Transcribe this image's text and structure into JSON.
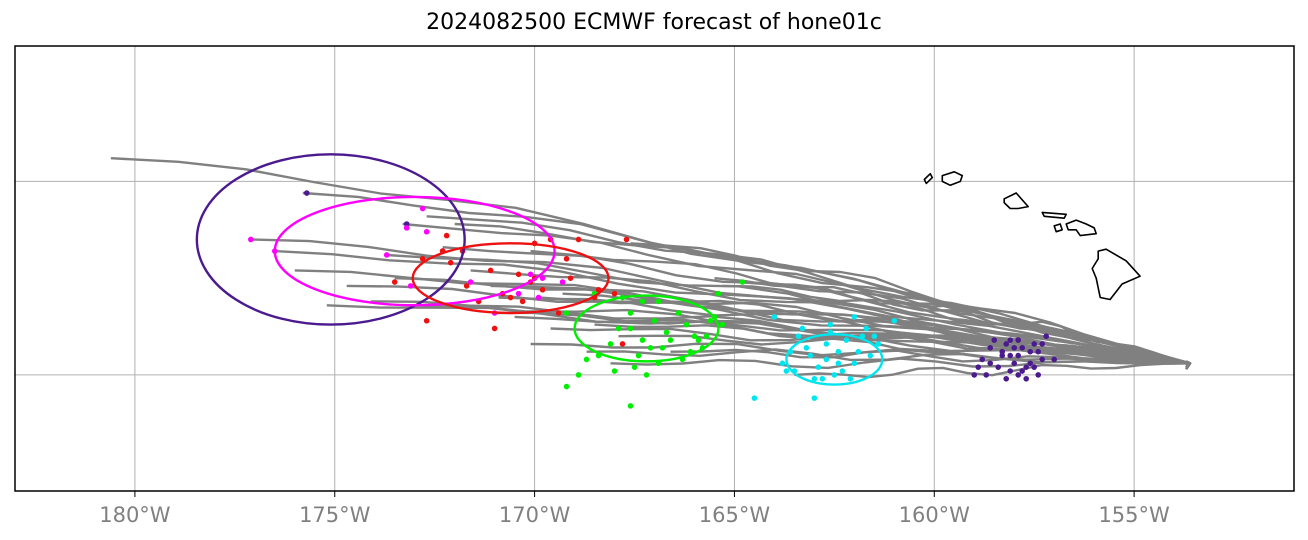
{
  "title": "2024082500 ECMWF forecast of hone01c",
  "map": {
    "lon_range": [
      -183,
      -151
    ],
    "lat_range": [
      14,
      25.5
    ],
    "gridlines_lon": [
      -180,
      -175,
      -170,
      -165,
      -160,
      -155
    ],
    "gridlines_lat": [
      17,
      22
    ],
    "lon_tick_labels": [
      "180°W",
      "175°W",
      "170°W",
      "165°W",
      "160°W",
      "155°W"
    ],
    "tick_label_color": "#808080",
    "grid_color": "#b0b0b0"
  },
  "ensemble_tracks": {
    "color": "#808080",
    "end_point": [
      -153.6,
      17.3
    ],
    "start_points": [
      [
        -180.6,
        22.6
      ],
      [
        -175.8,
        21.7
      ],
      [
        -173.3,
        20.9
      ],
      [
        -172.7,
        21.1
      ],
      [
        -177.1,
        20.5
      ],
      [
        -176.5,
        20.2
      ],
      [
        -172.3,
        20.3
      ],
      [
        -171.1,
        19.3
      ],
      [
        -172.0,
        20.9
      ],
      [
        -170.1,
        20.2
      ],
      [
        -173.7,
        20.1
      ],
      [
        -174.7,
        19.3
      ],
      [
        -173.5,
        19.5
      ],
      [
        -171.6,
        19.7
      ],
      [
        -170.9,
        19.0
      ],
      [
        -171.0,
        18.6
      ],
      [
        -169.3,
        19.1
      ],
      [
        -168.5,
        18.3
      ],
      [
        -167.6,
        20.4
      ],
      [
        -174.1,
        18.9
      ],
      [
        -170.5,
        18.5
      ],
      [
        -169.6,
        18.2
      ],
      [
        -167.9,
        18.0
      ],
      [
        -168.7,
        17.6
      ],
      [
        -161.0,
        18.9
      ],
      [
        -164.9,
        19.4
      ],
      [
        -165.3,
        19.3
      ],
      [
        -170.1,
        17.8
      ],
      [
        -168.1,
        17.3
      ],
      [
        -166.6,
        17.6
      ],
      [
        -163.5,
        17.0
      ],
      [
        -165.5,
        19.5
      ],
      [
        -175.2,
        18.8
      ],
      [
        -172.8,
        18.8
      ],
      [
        -176.0,
        19.7
      ],
      [
        -169.9,
        19.0
      ]
    ]
  },
  "positions": [
    {
      "name": "position-group-1",
      "color": "#4b1a8f",
      "ellipse": {
        "center": [
          -175.1,
          20.5
        ],
        "rx_deg": 6.7,
        "ry_deg": 4.4
      },
      "points": [
        [
          -175.7,
          21.7
        ],
        [
          -173.2,
          20.9
        ],
        [
          -158.1,
          17.9
        ],
        [
          -157.6,
          17.6
        ],
        [
          -158.3,
          17.5
        ],
        [
          -157.8,
          17.7
        ],
        [
          -158.0,
          17.3
        ],
        [
          -157.5,
          17.8
        ],
        [
          -158.4,
          17.2
        ],
        [
          -157.9,
          17.0
        ],
        [
          -158.6,
          17.7
        ],
        [
          -157.3,
          17.4
        ],
        [
          -158.1,
          17.5
        ],
        [
          -157.7,
          17.2
        ],
        [
          -158.8,
          17.4
        ],
        [
          -157.0,
          17.4
        ],
        [
          -158.2,
          16.9
        ],
        [
          -157.4,
          17.0
        ],
        [
          -158.5,
          17.9
        ],
        [
          -157.7,
          16.9
        ],
        [
          -158.9,
          17.2
        ],
        [
          -157.2,
          18.0
        ],
        [
          -158.3,
          17.6
        ],
        [
          -157.9,
          17.5
        ],
        [
          -157.6,
          17.3
        ],
        [
          -158.7,
          17.0
        ],
        [
          -157.4,
          17.6
        ],
        [
          -158.2,
          17.8
        ],
        [
          -157.8,
          17.1
        ],
        [
          -158.0,
          17.7
        ],
        [
          -159.0,
          17.0
        ],
        [
          -157.5,
          17.2
        ],
        [
          -158.1,
          17.1
        ],
        [
          -157.3,
          17.8
        ],
        [
          -158.6,
          17.3
        ],
        [
          -157.9,
          17.9
        ]
      ]
    },
    {
      "name": "position-group-2",
      "color": "#ff00ff",
      "ellipse": {
        "center": [
          -173.0,
          20.2
        ],
        "rx_deg": 7.0,
        "ry_deg": 2.8
      },
      "points": [
        [
          -172.8,
          21.3
        ],
        [
          -173.7,
          20.1
        ],
        [
          -172.7,
          20.7
        ],
        [
          -173.2,
          20.8
        ],
        [
          -177.1,
          20.5
        ],
        [
          -176.5,
          20.2
        ],
        [
          -172.3,
          20.2
        ],
        [
          -171.0,
          18.6
        ],
        [
          -170.4,
          19.1
        ],
        [
          -169.9,
          19.0
        ],
        [
          -169.3,
          19.4
        ],
        [
          -169.8,
          19.5
        ],
        [
          -173.1,
          19.3
        ],
        [
          -170.1,
          19.6
        ],
        [
          -171.6,
          19.4
        ]
      ]
    },
    {
      "name": "position-group-3",
      "color": "#ee1111",
      "ellipse": {
        "center": [
          -170.6,
          19.5
        ],
        "rx_deg": 4.9,
        "ry_deg": 1.8
      },
      "points": [
        [
          -172.3,
          20.2
        ],
        [
          -172.8,
          20.0
        ],
        [
          -171.1,
          19.7
        ],
        [
          -170.4,
          19.6
        ],
        [
          -170.0,
          19.5
        ],
        [
          -169.1,
          19.5
        ],
        [
          -168.5,
          19.0
        ],
        [
          -169.8,
          19.2
        ],
        [
          -170.8,
          19.1
        ],
        [
          -171.7,
          19.3
        ],
        [
          -172.1,
          19.9
        ],
        [
          -169.6,
          20.5
        ],
        [
          -168.9,
          20.5
        ],
        [
          -167.7,
          20.5
        ],
        [
          -170.1,
          19.4
        ],
        [
          -170.6,
          19.0
        ],
        [
          -171.4,
          18.9
        ],
        [
          -172.7,
          18.4
        ],
        [
          -173.5,
          19.4
        ],
        [
          -169.4,
          18.6
        ],
        [
          -167.8,
          17.8
        ],
        [
          -171.0,
          18.2
        ],
        [
          -170.0,
          20.4
        ],
        [
          -169.2,
          20.0
        ],
        [
          -168.4,
          19.2
        ],
        [
          -170.3,
          18.9
        ],
        [
          -171.8,
          20.2
        ],
        [
          -172.2,
          20.6
        ],
        [
          -168.0,
          19.1
        ]
      ]
    },
    {
      "name": "position-group-4",
      "color": "#00ee00",
      "ellipse": {
        "center": [
          -167.2,
          18.2
        ],
        "rx_deg": 3.6,
        "ry_deg": 1.7
      },
      "points": [
        [
          -164.8,
          19.4
        ],
        [
          -167.3,
          18.9
        ],
        [
          -166.4,
          18.6
        ],
        [
          -167.6,
          18.2
        ],
        [
          -166.8,
          17.7
        ],
        [
          -165.9,
          17.9
        ],
        [
          -168.1,
          17.8
        ],
        [
          -166.2,
          18.3
        ],
        [
          -165.5,
          18.5
        ],
        [
          -167.0,
          18.4
        ],
        [
          -168.4,
          17.5
        ],
        [
          -167.4,
          17.5
        ],
        [
          -166.0,
          18.0
        ],
        [
          -168.7,
          17.4
        ],
        [
          -167.9,
          18.2
        ],
        [
          -165.3,
          18.3
        ],
        [
          -166.7,
          18.1
        ],
        [
          -167.1,
          17.7
        ],
        [
          -168.5,
          19.1
        ],
        [
          -167.8,
          19.0
        ],
        [
          -166.6,
          17.9
        ],
        [
          -165.8,
          17.7
        ],
        [
          -169.2,
          18.6
        ],
        [
          -169.2,
          16.7
        ],
        [
          -167.6,
          16.2
        ],
        [
          -167.2,
          17.0
        ],
        [
          -166.1,
          17.6
        ],
        [
          -165.7,
          18.0
        ],
        [
          -167.5,
          17.2
        ],
        [
          -168.0,
          17.1
        ],
        [
          -168.9,
          17.0
        ],
        [
          -167.6,
          18.6
        ],
        [
          -166.9,
          18.9
        ],
        [
          -165.4,
          19.1
        ],
        [
          -167.3,
          17.9
        ],
        [
          -166.3,
          17.4
        ],
        [
          -166.9,
          17.3
        ],
        [
          -165.6,
          18.4
        ]
      ]
    },
    {
      "name": "position-group-5",
      "color": "#00e5ee",
      "ellipse": {
        "center": [
          -162.5,
          17.4
        ],
        "rx_deg": 2.4,
        "ry_deg": 1.3
      },
      "points": [
        [
          -163.5,
          17.1
        ],
        [
          -162.4,
          17.6
        ],
        [
          -161.0,
          18.4
        ],
        [
          -162.7,
          17.8
        ],
        [
          -163.1,
          17.5
        ],
        [
          -162.2,
          17.9
        ],
        [
          -161.7,
          18.2
        ],
        [
          -162.9,
          17.2
        ],
        [
          -163.4,
          18.0
        ],
        [
          -162.6,
          18.3
        ],
        [
          -161.4,
          17.8
        ],
        [
          -163.8,
          17.3
        ],
        [
          -162.0,
          17.3
        ],
        [
          -162.5,
          17.0
        ],
        [
          -161.9,
          17.6
        ],
        [
          -163.0,
          16.9
        ],
        [
          -162.7,
          17.4
        ],
        [
          -161.6,
          17.5
        ],
        [
          -163.2,
          17.7
        ],
        [
          -162.3,
          17.1
        ],
        [
          -161.8,
          18.0
        ],
        [
          -162.8,
          16.9
        ],
        [
          -164.5,
          16.4
        ],
        [
          -163.0,
          16.4
        ],
        [
          -164.0,
          18.5
        ],
        [
          -162.0,
          18.5
        ],
        [
          -163.7,
          17.1
        ],
        [
          -162.4,
          17.3
        ],
        [
          -162.1,
          16.9
        ],
        [
          -163.3,
          18.2
        ],
        [
          -161.5,
          18.0
        ],
        [
          -162.6,
          18.1
        ],
        [
          -163.6,
          17.6
        ]
      ]
    }
  ],
  "islands": [
    {
      "name": "niihau",
      "points": [
        [
          -160.25,
          22.05
        ],
        [
          -160.1,
          22.2
        ],
        [
          -160.05,
          22.1
        ],
        [
          -160.2,
          21.95
        ]
      ]
    },
    {
      "name": "kauai",
      "points": [
        [
          -159.8,
          22.15
        ],
        [
          -159.5,
          22.25
        ],
        [
          -159.3,
          22.15
        ],
        [
          -159.35,
          22.0
        ],
        [
          -159.6,
          21.9
        ],
        [
          -159.8,
          22.0
        ]
      ]
    },
    {
      "name": "oahu",
      "points": [
        [
          -158.25,
          21.55
        ],
        [
          -157.95,
          21.7
        ],
        [
          -157.65,
          21.35
        ],
        [
          -157.9,
          21.3
        ],
        [
          -158.1,
          21.3
        ],
        [
          -158.25,
          21.45
        ]
      ]
    },
    {
      "name": "molokai",
      "points": [
        [
          -157.3,
          21.2
        ],
        [
          -156.7,
          21.15
        ],
        [
          -156.75,
          21.05
        ],
        [
          -157.25,
          21.1
        ]
      ]
    },
    {
      "name": "lanai",
      "points": [
        [
          -157.0,
          20.85
        ],
        [
          -156.85,
          20.9
        ],
        [
          -156.8,
          20.75
        ],
        [
          -156.95,
          20.7
        ]
      ]
    },
    {
      "name": "maui",
      "points": [
        [
          -156.7,
          20.9
        ],
        [
          -156.45,
          21.0
        ],
        [
          -156.2,
          20.9
        ],
        [
          -156.0,
          20.8
        ],
        [
          -155.95,
          20.65
        ],
        [
          -156.35,
          20.6
        ],
        [
          -156.45,
          20.75
        ],
        [
          -156.65,
          20.75
        ]
      ]
    },
    {
      "name": "hawaii",
      "points": [
        [
          -155.9,
          20.2
        ],
        [
          -155.7,
          20.25
        ],
        [
          -155.2,
          19.95
        ],
        [
          -154.85,
          19.55
        ],
        [
          -155.3,
          19.35
        ],
        [
          -155.6,
          18.95
        ],
        [
          -155.85,
          19.0
        ],
        [
          -155.95,
          19.5
        ],
        [
          -156.05,
          19.75
        ],
        [
          -155.9,
          20.0
        ]
      ]
    }
  ]
}
